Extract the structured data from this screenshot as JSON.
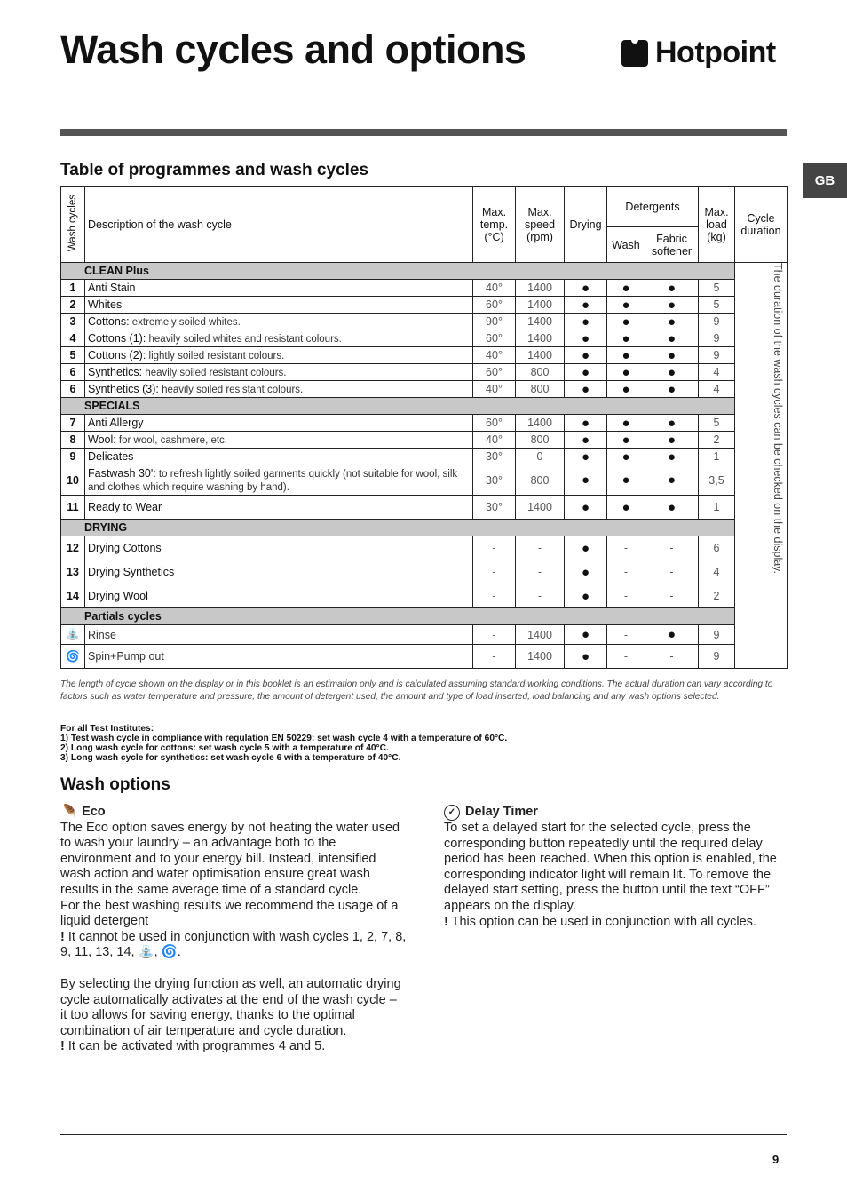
{
  "header": {
    "title": "Wash cycles and options",
    "brand": "Hotpoint",
    "lang_tab": "GB"
  },
  "table_section": {
    "title": "Table of programmes and wash cycles"
  },
  "table": {
    "headers": {
      "wash_cycles": "Wash cycles",
      "description": "Description of the wash cycle",
      "max_temp": "Max. temp. (°C)",
      "max_speed": "Max. speed (rpm)",
      "drying": "Drying",
      "detergents": "Detergents",
      "wash": "Wash",
      "fabric_softener": "Fabric softener",
      "max_load": "Max. load (kg)",
      "cycle_duration": "Cycle duration"
    },
    "duration_note": "The duration of the wash cycles can be checked on the display.",
    "sections": [
      {
        "title": "CLEAN Plus",
        "rows": [
          {
            "num": "1",
            "name": "Anti Stain",
            "desc": "",
            "temp": "40°",
            "speed": "1400",
            "drying": "●",
            "wash": "●",
            "softener": "●",
            "load": "5"
          },
          {
            "num": "2",
            "name": "Whites",
            "desc": "",
            "temp": "60°",
            "speed": "1400",
            "drying": "●",
            "wash": "●",
            "softener": "●",
            "load": "5"
          },
          {
            "num": "3",
            "name": "Cottons:",
            "desc": " extremely soiled whites.",
            "temp": "90°",
            "speed": "1400",
            "drying": "●",
            "wash": "●",
            "softener": "●",
            "load": "9"
          },
          {
            "num": "4",
            "name": "Cottons (1):",
            "desc": " heavily soiled whites and resistant colours.",
            "temp": "60°",
            "speed": "1400",
            "drying": "●",
            "wash": "●",
            "softener": "●",
            "load": "9"
          },
          {
            "num": "5",
            "name": "Cottons (2):",
            "desc": " lightly soiled resistant colours.",
            "temp": "40°",
            "speed": "1400",
            "drying": "●",
            "wash": "●",
            "softener": "●",
            "load": "9"
          },
          {
            "num": "6",
            "name": "Synthetics:",
            "desc": " heavily soiled resistant colours.",
            "temp": "60°",
            "speed": "800",
            "drying": "●",
            "wash": "●",
            "softener": "●",
            "load": "4"
          },
          {
            "num": "6",
            "name": "Synthetics (3):",
            "desc": " heavily soiled resistant colours.",
            "temp": "40°",
            "speed": "800",
            "drying": "●",
            "wash": "●",
            "softener": "●",
            "load": "4"
          }
        ]
      },
      {
        "title": "SPECIALS",
        "rows": [
          {
            "num": "7",
            "name": "Anti Allergy",
            "desc": "",
            "temp": "60°",
            "speed": "1400",
            "drying": "●",
            "wash": "●",
            "softener": "●",
            "load": "5"
          },
          {
            "num": "8",
            "name": "Wool:",
            "desc": " for wool, cashmere, etc.",
            "temp": "40°",
            "speed": "800",
            "drying": "●",
            "wash": "●",
            "softener": "●",
            "load": "2"
          },
          {
            "num": "9",
            "name": "Delicates",
            "desc": "",
            "temp": "30°",
            "speed": "0",
            "drying": "●",
            "wash": "●",
            "softener": "●",
            "load": "1"
          },
          {
            "num": "10",
            "name": "Fastwash 30':",
            "desc": " to refresh lightly soiled garments quickly (not suitable for wool, silk and clothes which require washing by hand).",
            "temp": "30°",
            "speed": "800",
            "drying": "●",
            "wash": "●",
            "softener": "●",
            "load": "3,5"
          },
          {
            "num": "11",
            "name": "Ready to Wear",
            "desc": "",
            "temp": "30°",
            "speed": "1400",
            "drying": "●",
            "wash": "●",
            "softener": "●",
            "load": "1"
          }
        ]
      },
      {
        "title": "DRYING",
        "rows": [
          {
            "num": "12",
            "name": "Drying Cottons",
            "desc": "",
            "temp": "-",
            "speed": "-",
            "drying": "●",
            "wash": "-",
            "softener": "-",
            "load": "6"
          },
          {
            "num": "13",
            "name": "Drying Synthetics",
            "desc": "",
            "temp": "-",
            "speed": "-",
            "drying": "●",
            "wash": "-",
            "softener": "-",
            "load": "4"
          },
          {
            "num": "14",
            "name": "Drying Wool",
            "desc": "",
            "temp": "-",
            "speed": "-",
            "drying": "●",
            "wash": "-",
            "softener": "-",
            "load": "2"
          }
        ]
      },
      {
        "title": "Partials cycles",
        "rows": [
          {
            "num": "",
            "icon": "rinse-icon",
            "name": "",
            "desc": "Rinse",
            "temp": "-",
            "speed": "1400",
            "drying": "●",
            "wash": "-",
            "softener": "●",
            "load": "9"
          },
          {
            "num": "",
            "icon": "spin-pump-icon",
            "name": "",
            "desc": "Spin+Pump out",
            "temp": "-",
            "speed": "1400",
            "drying": "●",
            "wash": "-",
            "softener": "-",
            "load": "9"
          }
        ]
      }
    ]
  },
  "notes": {
    "duration": "The length of cycle shown on the display or in this booklet is an estimation only and is calculated assuming standard working conditions. The actual duration can vary according to factors such as water temperature and pressure, the amount of detergent used, the amount and type of load inserted, load balancing and any wash options selected.",
    "tests_title": "For all Test Institutes:",
    "tests": [
      "1) Test wash cycle in compliance with regulation EN 50229: set wash cycle 4 with a temperature of 60°C.",
      "2) Long wash cycle for cottons: set wash cycle 5 with a temperature of 40°C.",
      "3) Long wash cycle for synthetics: set wash cycle 6 with a temperature of 40°C."
    ]
  },
  "options": {
    "title": "Wash options",
    "eco": {
      "title": "Eco",
      "p1": "The Eco option saves energy by not heating the water used to wash your laundry – an advantage both to the environment and to your energy bill. Instead, intensified wash action and water optimisation ensure great wash results in the same average time of a standard cycle.",
      "p2": "For the best washing results we recommend the usage of a liquid detergent",
      "warn1": " It cannot be used in conjunction with wash cycles 1, 2, 7, 8, 9, 11, 13, 14, ",
      "p3": "By selecting the drying function as well, an automatic drying cycle automatically activates at the end of the wash cycle – it too allows for saving energy, thanks to the optimal combination of air temperature and cycle duration.",
      "warn2": " It can be activated with programmes 4 and 5."
    },
    "delay": {
      "title": "Delay Timer",
      "p1": "To set a delayed start for the selected cycle, press the corresponding button repeatedly until the required delay period has been reached. When this option is enabled, the corresponding indicator light will remain lit. To remove the delayed start setting, press the button until the text “OFF” appears on the display.",
      "warn": " This option can be used in conjunction with all cycles."
    }
  },
  "page_number": "9"
}
